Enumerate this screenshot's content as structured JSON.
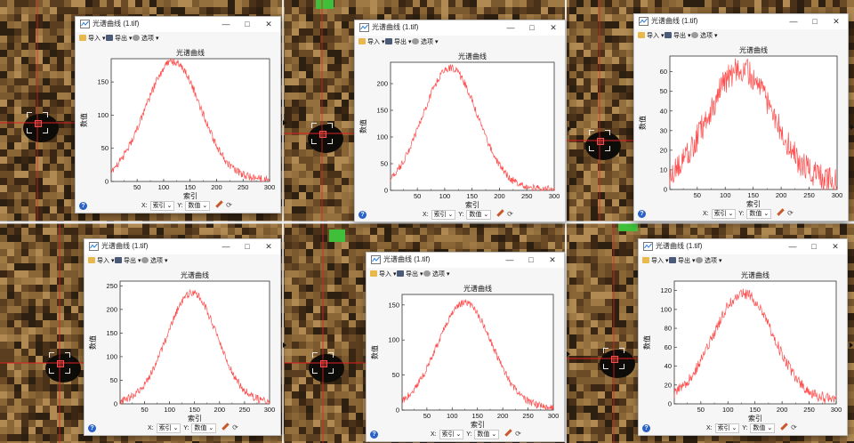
{
  "window_title": "光谱曲线 (1.tif)",
  "toolbar": {
    "import": "导入",
    "export": "导出",
    "options": "选项"
  },
  "plot_title": "光谱曲线",
  "xlabel": "索引",
  "ylabel": "数值",
  "footer": {
    "x_label": "X:",
    "x_value": "索引",
    "y_label": "Y:",
    "y_value": "数值"
  },
  "icons": [
    "app-icon",
    "minimize-icon",
    "maximize-icon",
    "close-icon",
    "import-icon",
    "export-icon",
    "options-icon",
    "help-icon",
    "pencil-icon",
    "refresh-icon"
  ],
  "colors": {
    "curve": "#ff4d4d",
    "crosshair": "#e02020",
    "help": "#2b62c8"
  },
  "chart_data": [
    {
      "type": "line",
      "title": "光谱曲线",
      "xlabel": "索引",
      "ylabel": "数值",
      "xlim": [
        1,
        300
      ],
      "ylim": [
        0,
        185
      ],
      "x_ticks": [
        50,
        100,
        150,
        200,
        250,
        300
      ],
      "y_ticks": [
        0,
        50,
        100,
        150
      ],
      "peak_x": 118,
      "peak_y": 178,
      "sigma": 52,
      "base": 3,
      "noise": 6
    },
    {
      "type": "line",
      "title": "光谱曲线",
      "xlabel": "索引",
      "ylabel": "数值",
      "xlim": [
        1,
        300
      ],
      "ylim": [
        0,
        240
      ],
      "x_ticks": [
        50,
        100,
        150,
        200,
        250,
        300
      ],
      "y_ticks": [
        0,
        50,
        100,
        150,
        200
      ],
      "peak_x": 110,
      "peak_y": 228,
      "sigma": 50,
      "base": 2,
      "noise": 7
    },
    {
      "type": "line",
      "title": "光谱曲线",
      "xlabel": "索引",
      "ylabel": "数值",
      "xlim": [
        1,
        300
      ],
      "ylim": [
        0,
        68
      ],
      "x_ticks": [
        50,
        100,
        150,
        200,
        250,
        300
      ],
      "y_ticks": [
        0,
        10,
        20,
        30,
        40,
        50,
        60
      ],
      "peak_x": 128,
      "peak_y": 58,
      "sigma": 58,
      "base": 3,
      "noise": 7
    },
    {
      "type": "line",
      "title": "光谱曲线",
      "xlabel": "索引",
      "ylabel": "数值",
      "xlim": [
        1,
        300
      ],
      "ylim": [
        0,
        260
      ],
      "x_ticks": [
        50,
        100,
        150,
        200,
        250,
        300
      ],
      "y_ticks": [
        0,
        50,
        100,
        150,
        200,
        250
      ],
      "peak_x": 145,
      "peak_y": 232,
      "sigma": 50,
      "base": 3,
      "noise": 8
    },
    {
      "type": "line",
      "title": "光谱曲线",
      "xlabel": "索引",
      "ylabel": "数值",
      "xlim": [
        1,
        300
      ],
      "ylim": [
        0,
        165
      ],
      "x_ticks": [
        50,
        100,
        150,
        200,
        250,
        300
      ],
      "y_ticks": [
        0,
        50,
        100,
        150
      ],
      "peak_x": 125,
      "peak_y": 150,
      "sigma": 54,
      "base": 3,
      "noise": 5
    },
    {
      "type": "line",
      "title": "光谱曲线",
      "xlabel": "索引",
      "ylabel": "数值",
      "xlim": [
        1,
        300
      ],
      "ylim": [
        0,
        130
      ],
      "x_ticks": [
        50,
        100,
        150,
        200,
        250,
        300
      ],
      "y_ticks": [
        0,
        20,
        40,
        60,
        80,
        100,
        120
      ],
      "peak_x": 128,
      "peak_y": 114,
      "sigma": 56,
      "base": 3,
      "noise": 6
    }
  ]
}
